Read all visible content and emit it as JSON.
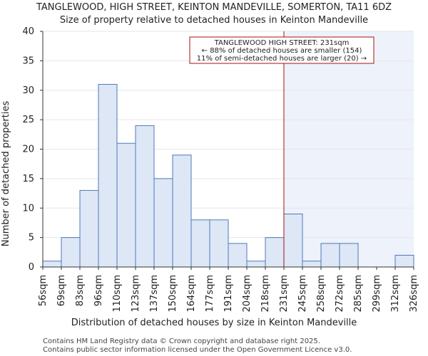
{
  "chart_data": {
    "type": "bar",
    "title": "TANGLEWOOD, HIGH STREET, KEINTON MANDEVILLE, SOMERTON, TA11 6DZ",
    "subtitle": "Size of property relative to detached houses in Keinton Mandeville",
    "xlabel": "Distribution of detached houses by size in Keinton Mandeville",
    "ylabel": "Number of detached properties",
    "bin_edges": [
      56,
      69,
      83,
      96,
      110,
      123,
      137,
      150,
      164,
      177,
      191,
      204,
      218,
      231,
      245,
      258,
      272,
      285,
      299,
      312,
      326
    ],
    "tick_labels": [
      "56sqm",
      "69sqm",
      "83sqm",
      "96sqm",
      "110sqm",
      "123sqm",
      "137sqm",
      "150sqm",
      "164sqm",
      "177sqm",
      "191sqm",
      "204sqm",
      "218sqm",
      "231sqm",
      "245sqm",
      "258sqm",
      "272sqm",
      "285sqm",
      "299sqm",
      "312sqm",
      "326sqm"
    ],
    "values": [
      1,
      5,
      13,
      31,
      21,
      24,
      15,
      19,
      8,
      8,
      4,
      1,
      5,
      9,
      1,
      4,
      4,
      0,
      0,
      2
    ],
    "ylim": [
      0,
      40
    ],
    "yticks": [
      0,
      5,
      10,
      15,
      20,
      25,
      30,
      35,
      40
    ],
    "marker_value": 231,
    "highlight_color": "#eef2fb",
    "bar_color": "#dde7f6",
    "edge_color": "#4f78b8",
    "marker_color": "#aa1111",
    "annotation": {
      "line1": "TANGLEWOOD HIGH STREET: 231sqm",
      "line2": "← 88% of detached houses are smaller (154)",
      "line3": "11% of semi-detached houses are larger (20) →"
    }
  },
  "footer": {
    "line1": "Contains HM Land Registry data © Crown copyright and database right 2025.",
    "line2": "Contains public sector information licensed under the Open Government Licence v3.0."
  }
}
